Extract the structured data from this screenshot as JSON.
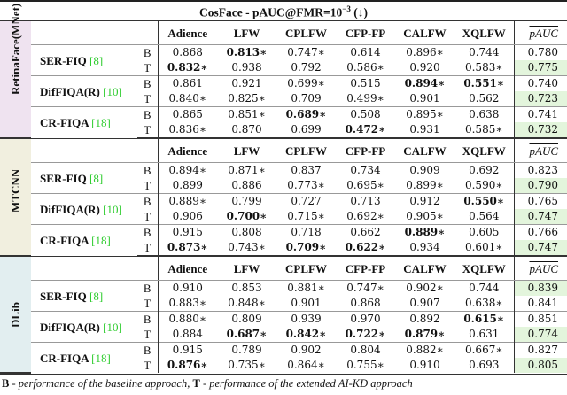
{
  "title": {
    "main": "CosFace - pAUC@FMR=10",
    "exponent": "−3",
    "arrow": "(↓)"
  },
  "columns": [
    "Adience",
    "LFW",
    "CPLFW",
    "CFP-FP",
    "CALFW",
    "XQLFW"
  ],
  "mean_header": "pAUC",
  "colors": {
    "highlight": "#e3f5dc",
    "reference": "#2ecc2e"
  },
  "sections": [
    {
      "detector": "RetinaFace(MNet)",
      "color": "#efe3f0",
      "methods": [
        {
          "name": "SER-FIQ",
          "ref": "[8]",
          "rows": [
            {
              "label": "B",
              "cells": [
                {
                  "v": "0.868"
                },
                {
                  "v": "0.813∗",
                  "bold": true
                },
                {
                  "v": "0.747∗"
                },
                {
                  "v": "0.614"
                },
                {
                  "v": "0.896∗"
                },
                {
                  "v": "0.744"
                }
              ],
              "mean": "0.780",
              "highlight": false
            },
            {
              "label": "T",
              "cells": [
                {
                  "v": "0.832∗",
                  "bold": true
                },
                {
                  "v": "0.938"
                },
                {
                  "v": "0.792"
                },
                {
                  "v": "0.586∗"
                },
                {
                  "v": "0.920"
                },
                {
                  "v": "0.583∗"
                }
              ],
              "mean": "0.775",
              "highlight": true
            }
          ]
        },
        {
          "name": "DifFIQA(R)",
          "ref": "[10]",
          "rows": [
            {
              "label": "B",
              "cells": [
                {
                  "v": "0.861"
                },
                {
                  "v": "0.921"
                },
                {
                  "v": "0.699∗"
                },
                {
                  "v": "0.515"
                },
                {
                  "v": "0.894∗",
                  "bold": true
                },
                {
                  "v": "0.551∗",
                  "bold": true
                }
              ],
              "mean": "0.740",
              "highlight": false
            },
            {
              "label": "T",
              "cells": [
                {
                  "v": "0.840∗"
                },
                {
                  "v": "0.825∗"
                },
                {
                  "v": "0.709"
                },
                {
                  "v": "0.499∗"
                },
                {
                  "v": "0.901"
                },
                {
                  "v": "0.562"
                }
              ],
              "mean": "0.723",
              "highlight": true
            }
          ]
        },
        {
          "name": "CR-FIQA",
          "ref": "[18]",
          "rows": [
            {
              "label": "B",
              "cells": [
                {
                  "v": "0.865"
                },
                {
                  "v": "0.851∗"
                },
                {
                  "v": "0.689∗",
                  "bold": true
                },
                {
                  "v": "0.508"
                },
                {
                  "v": "0.895∗"
                },
                {
                  "v": "0.638"
                }
              ],
              "mean": "0.741",
              "highlight": false
            },
            {
              "label": "T",
              "cells": [
                {
                  "v": "0.836∗"
                },
                {
                  "v": "0.870"
                },
                {
                  "v": "0.699"
                },
                {
                  "v": "0.472∗",
                  "bold": true
                },
                {
                  "v": "0.931"
                },
                {
                  "v": "0.585∗"
                }
              ],
              "mean": "0.732",
              "highlight": true
            }
          ]
        }
      ]
    },
    {
      "detector": "MTCNN",
      "color": "#f1efdf",
      "methods": [
        {
          "name": "SER-FIQ",
          "ref": "[8]",
          "rows": [
            {
              "label": "B",
              "cells": [
                {
                  "v": "0.894∗"
                },
                {
                  "v": "0.871∗"
                },
                {
                  "v": "0.837"
                },
                {
                  "v": "0.734"
                },
                {
                  "v": "0.909"
                },
                {
                  "v": "0.692"
                }
              ],
              "mean": "0.823",
              "highlight": false
            },
            {
              "label": "T",
              "cells": [
                {
                  "v": "0.899"
                },
                {
                  "v": "0.886"
                },
                {
                  "v": "0.773∗"
                },
                {
                  "v": "0.695∗"
                },
                {
                  "v": "0.899∗"
                },
                {
                  "v": "0.590∗"
                }
              ],
              "mean": "0.790",
              "highlight": true
            }
          ]
        },
        {
          "name": "DifFIQA(R)",
          "ref": "[10]",
          "rows": [
            {
              "label": "B",
              "cells": [
                {
                  "v": "0.889∗"
                },
                {
                  "v": "0.799"
                },
                {
                  "v": "0.727"
                },
                {
                  "v": "0.713"
                },
                {
                  "v": "0.912"
                },
                {
                  "v": "0.550∗",
                  "bold": true
                }
              ],
              "mean": "0.765",
              "highlight": false
            },
            {
              "label": "T",
              "cells": [
                {
                  "v": "0.906"
                },
                {
                  "v": "0.700∗",
                  "bold": true
                },
                {
                  "v": "0.715∗"
                },
                {
                  "v": "0.692∗"
                },
                {
                  "v": "0.905∗"
                },
                {
                  "v": "0.564"
                }
              ],
              "mean": "0.747",
              "highlight": true
            }
          ]
        },
        {
          "name": "CR-FIQA",
          "ref": "[18]",
          "rows": [
            {
              "label": "B",
              "cells": [
                {
                  "v": "0.915"
                },
                {
                  "v": "0.808"
                },
                {
                  "v": "0.718"
                },
                {
                  "v": "0.662"
                },
                {
                  "v": "0.889∗",
                  "bold": true
                },
                {
                  "v": "0.605"
                }
              ],
              "mean": "0.766",
              "highlight": false
            },
            {
              "label": "T",
              "cells": [
                {
                  "v": "0.873∗",
                  "bold": true
                },
                {
                  "v": "0.743∗"
                },
                {
                  "v": "0.709∗",
                  "bold": true
                },
                {
                  "v": "0.622∗",
                  "bold": true
                },
                {
                  "v": "0.934"
                },
                {
                  "v": "0.601∗"
                }
              ],
              "mean": "0.747",
              "highlight": true
            }
          ]
        }
      ]
    },
    {
      "detector": "DLib",
      "color": "#e2eef0",
      "methods": [
        {
          "name": "SER-FIQ",
          "ref": "[8]",
          "rows": [
            {
              "label": "B",
              "cells": [
                {
                  "v": "0.910"
                },
                {
                  "v": "0.853"
                },
                {
                  "v": "0.881∗"
                },
                {
                  "v": "0.747∗"
                },
                {
                  "v": "0.902∗"
                },
                {
                  "v": "0.744"
                }
              ],
              "mean": "0.839",
              "highlight": true
            },
            {
              "label": "T",
              "cells": [
                {
                  "v": "0.883∗"
                },
                {
                  "v": "0.848∗"
                },
                {
                  "v": "0.901"
                },
                {
                  "v": "0.868"
                },
                {
                  "v": "0.907"
                },
                {
                  "v": "0.638∗"
                }
              ],
              "mean": "0.841",
              "highlight": false
            }
          ]
        },
        {
          "name": "DifFIQA(R)",
          "ref": "[10]",
          "rows": [
            {
              "label": "B",
              "cells": [
                {
                  "v": "0.880∗"
                },
                {
                  "v": "0.809"
                },
                {
                  "v": "0.939"
                },
                {
                  "v": "0.970"
                },
                {
                  "v": "0.892"
                },
                {
                  "v": "0.615∗",
                  "bold": true
                }
              ],
              "mean": "0.851",
              "highlight": false
            },
            {
              "label": "T",
              "cells": [
                {
                  "v": "0.884"
                },
                {
                  "v": "0.687∗",
                  "bold": true
                },
                {
                  "v": "0.842∗",
                  "bold": true
                },
                {
                  "v": "0.722∗",
                  "bold": true
                },
                {
                  "v": "0.879∗",
                  "bold": true
                },
                {
                  "v": "0.631"
                }
              ],
              "mean": "0.774",
              "highlight": true
            }
          ]
        },
        {
          "name": "CR-FIQA",
          "ref": "[18]",
          "rows": [
            {
              "label": "B",
              "cells": [
                {
                  "v": "0.915"
                },
                {
                  "v": "0.789"
                },
                {
                  "v": "0.902"
                },
                {
                  "v": "0.804"
                },
                {
                  "v": "0.882∗"
                },
                {
                  "v": "0.667∗"
                }
              ],
              "mean": "0.827",
              "highlight": false
            },
            {
              "label": "T",
              "cells": [
                {
                  "v": "0.876∗",
                  "bold": true
                },
                {
                  "v": "0.735∗"
                },
                {
                  "v": "0.864∗"
                },
                {
                  "v": "0.755∗"
                },
                {
                  "v": "0.910"
                },
                {
                  "v": "0.693"
                }
              ],
              "mean": "0.805",
              "highlight": true
            }
          ]
        }
      ]
    }
  ],
  "footer": {
    "b_key": "B",
    "b_text": " - performance of the baseline approach, ",
    "t_key": "T",
    "t_text": " - performance of the extended AI-KD approach"
  }
}
